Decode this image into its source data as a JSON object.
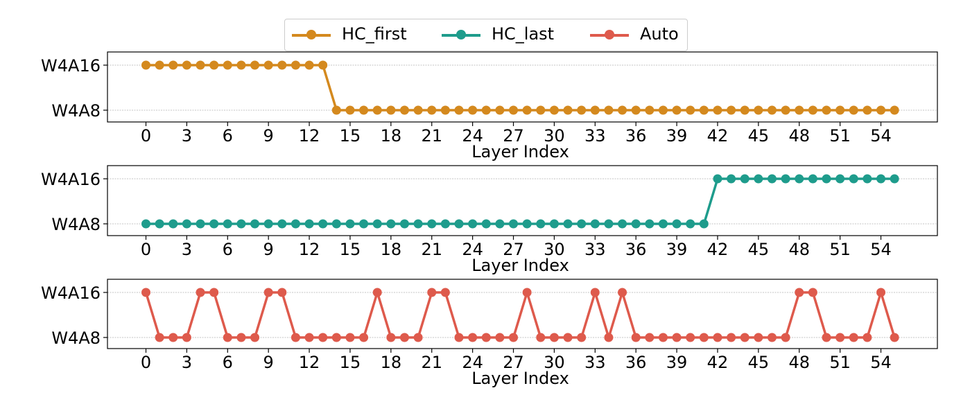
{
  "chart_data": {
    "type": "line",
    "x_ticks": [
      0,
      3,
      6,
      9,
      12,
      15,
      18,
      21,
      24,
      27,
      30,
      33,
      36,
      39,
      42,
      45,
      48,
      51,
      54
    ],
    "y_categories": [
      "W4A8",
      "W4A16"
    ],
    "grid": "horizontal",
    "legend_position": "top-center",
    "subplots": [
      {
        "name": "HC_first",
        "color": "#d4891e",
        "xlabel": "Layer Index",
        "values": [
          "W4A16",
          "W4A16",
          "W4A16",
          "W4A16",
          "W4A16",
          "W4A16",
          "W4A16",
          "W4A16",
          "W4A16",
          "W4A16",
          "W4A16",
          "W4A16",
          "W4A16",
          "W4A16",
          "W4A8",
          "W4A8",
          "W4A8",
          "W4A8",
          "W4A8",
          "W4A8",
          "W4A8",
          "W4A8",
          "W4A8",
          "W4A8",
          "W4A8",
          "W4A8",
          "W4A8",
          "W4A8",
          "W4A8",
          "W4A8",
          "W4A8",
          "W4A8",
          "W4A8",
          "W4A8",
          "W4A8",
          "W4A8",
          "W4A8",
          "W4A8",
          "W4A8",
          "W4A8",
          "W4A8",
          "W4A8",
          "W4A8",
          "W4A8",
          "W4A8",
          "W4A8",
          "W4A8",
          "W4A8",
          "W4A8",
          "W4A8",
          "W4A8",
          "W4A8",
          "W4A8",
          "W4A8",
          "W4A8",
          "W4A8"
        ]
      },
      {
        "name": "HC_last",
        "color": "#1e9c8c",
        "xlabel": "Layer Index",
        "values": [
          "W4A8",
          "W4A8",
          "W4A8",
          "W4A8",
          "W4A8",
          "W4A8",
          "W4A8",
          "W4A8",
          "W4A8",
          "W4A8",
          "W4A8",
          "W4A8",
          "W4A8",
          "W4A8",
          "W4A8",
          "W4A8",
          "W4A8",
          "W4A8",
          "W4A8",
          "W4A8",
          "W4A8",
          "W4A8",
          "W4A8",
          "W4A8",
          "W4A8",
          "W4A8",
          "W4A8",
          "W4A8",
          "W4A8",
          "W4A8",
          "W4A8",
          "W4A8",
          "W4A8",
          "W4A8",
          "W4A8",
          "W4A8",
          "W4A8",
          "W4A8",
          "W4A8",
          "W4A8",
          "W4A8",
          "W4A8",
          "W4A16",
          "W4A16",
          "W4A16",
          "W4A16",
          "W4A16",
          "W4A16",
          "W4A16",
          "W4A16",
          "W4A16",
          "W4A16",
          "W4A16",
          "W4A16",
          "W4A16",
          "W4A16"
        ]
      },
      {
        "name": "Auto",
        "color": "#de5a4c",
        "xlabel": "Layer Index",
        "values": [
          "W4A16",
          "W4A8",
          "W4A8",
          "W4A8",
          "W4A16",
          "W4A16",
          "W4A8",
          "W4A8",
          "W4A8",
          "W4A16",
          "W4A16",
          "W4A8",
          "W4A8",
          "W4A8",
          "W4A8",
          "W4A8",
          "W4A8",
          "W4A16",
          "W4A8",
          "W4A8",
          "W4A8",
          "W4A16",
          "W4A16",
          "W4A8",
          "W4A8",
          "W4A8",
          "W4A8",
          "W4A8",
          "W4A16",
          "W4A8",
          "W4A8",
          "W4A8",
          "W4A8",
          "W4A16",
          "W4A8",
          "W4A16",
          "W4A8",
          "W4A8",
          "W4A8",
          "W4A8",
          "W4A8",
          "W4A8",
          "W4A8",
          "W4A8",
          "W4A8",
          "W4A8",
          "W4A8",
          "W4A8",
          "W4A16",
          "W4A16",
          "W4A8",
          "W4A8",
          "W4A8",
          "W4A8",
          "W4A16",
          "W4A8"
        ]
      }
    ]
  }
}
